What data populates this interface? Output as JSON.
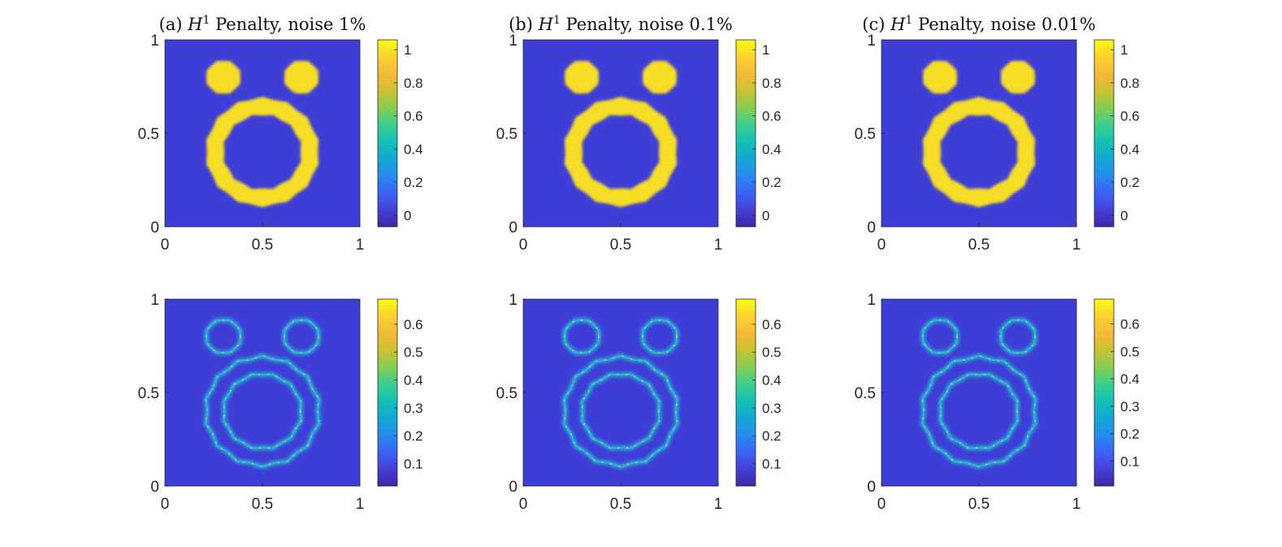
{
  "chart_data": [
    {
      "type": "heatmap",
      "row": 0,
      "col": 0,
      "title_prefix": "(a) ",
      "title_math": "H",
      "title_sup": "1",
      "title_suffix": " Penalty, noise 1%",
      "xlabel": "",
      "ylabel": "",
      "xlim": [
        0,
        1
      ],
      "ylim": [
        0,
        1
      ],
      "x_ticks": [
        "0",
        "0.5",
        "1"
      ],
      "y_ticks": [
        "0",
        "0.5",
        "1"
      ],
      "field": "indicator",
      "shapes": {
        "small_disks": [
          [
            0.3,
            0.8,
            0.09
          ],
          [
            0.7,
            0.8,
            0.09
          ]
        ],
        "annulus": [
          0.5,
          0.4,
          0.2,
          0.29
        ]
      },
      "clim": [
        -0.07,
        1.06
      ],
      "colorbar_ticks": [
        "0",
        "0.2",
        "0.4",
        "0.6",
        "0.8",
        "1"
      ],
      "colorbar_values": [
        0,
        0.2,
        0.4,
        0.6,
        0.8,
        1
      ]
    },
    {
      "type": "heatmap",
      "row": 0,
      "col": 1,
      "title_prefix": "(b) ",
      "title_math": "H",
      "title_sup": "1",
      "title_suffix": " Penalty, noise 0.1%",
      "xlabel": "",
      "ylabel": "",
      "xlim": [
        0,
        1
      ],
      "ylim": [
        0,
        1
      ],
      "x_ticks": [
        "0",
        "0.5",
        "1"
      ],
      "y_ticks": [
        "0",
        "0.5",
        "1"
      ],
      "field": "indicator",
      "shapes": {
        "small_disks": [
          [
            0.3,
            0.8,
            0.09
          ],
          [
            0.7,
            0.8,
            0.09
          ]
        ],
        "annulus": [
          0.5,
          0.4,
          0.2,
          0.29
        ]
      },
      "clim": [
        -0.07,
        1.06
      ],
      "colorbar_ticks": [
        "0",
        "0.2",
        "0.4",
        "0.6",
        "0.8",
        "1"
      ],
      "colorbar_values": [
        0,
        0.2,
        0.4,
        0.6,
        0.8,
        1
      ]
    },
    {
      "type": "heatmap",
      "row": 0,
      "col": 2,
      "title_prefix": "(c) ",
      "title_math": "H",
      "title_sup": "1",
      "title_suffix": " Penalty, noise 0.01%",
      "xlabel": "",
      "ylabel": "",
      "xlim": [
        0,
        1
      ],
      "ylim": [
        0,
        1
      ],
      "x_ticks": [
        "0",
        "0.5",
        "1"
      ],
      "y_ticks": [
        "0",
        "0.5",
        "1"
      ],
      "field": "indicator",
      "shapes": {
        "small_disks": [
          [
            0.3,
            0.8,
            0.09
          ],
          [
            0.7,
            0.8,
            0.09
          ]
        ],
        "annulus": [
          0.5,
          0.4,
          0.2,
          0.29
        ]
      },
      "clim": [
        -0.07,
        1.06
      ],
      "colorbar_ticks": [
        "0",
        "0.2",
        "0.4",
        "0.6",
        "0.8",
        "1"
      ],
      "colorbar_values": [
        0,
        0.2,
        0.4,
        0.6,
        0.8,
        1
      ]
    },
    {
      "type": "heatmap",
      "row": 1,
      "col": 0,
      "xlabel": "",
      "ylabel": "",
      "xlim": [
        0,
        1
      ],
      "ylim": [
        0,
        1
      ],
      "x_ticks": [
        "0",
        "0.5",
        "1"
      ],
      "y_ticks": [
        "0",
        "0.5",
        "1"
      ],
      "field": "edges",
      "shapes": {
        "small_disks": [
          [
            0.3,
            0.8,
            0.09
          ],
          [
            0.7,
            0.8,
            0.09
          ]
        ],
        "annulus": [
          0.5,
          0.4,
          0.2,
          0.29
        ]
      },
      "clim": [
        0.02,
        0.69
      ],
      "colorbar_ticks": [
        "0.1",
        "0.2",
        "0.3",
        "0.4",
        "0.5",
        "0.6"
      ],
      "colorbar_values": [
        0.1,
        0.2,
        0.3,
        0.4,
        0.5,
        0.6
      ]
    },
    {
      "type": "heatmap",
      "row": 1,
      "col": 1,
      "xlabel": "",
      "ylabel": "",
      "xlim": [
        0,
        1
      ],
      "ylim": [
        0,
        1
      ],
      "x_ticks": [
        "0",
        "0.5",
        "1"
      ],
      "y_ticks": [
        "0",
        "0.5",
        "1"
      ],
      "field": "edges",
      "shapes": {
        "small_disks": [
          [
            0.3,
            0.8,
            0.09
          ],
          [
            0.7,
            0.8,
            0.09
          ]
        ],
        "annulus": [
          0.5,
          0.4,
          0.2,
          0.29
        ]
      },
      "clim": [
        0.02,
        0.69
      ],
      "colorbar_ticks": [
        "0.1",
        "0.2",
        "0.3",
        "0.4",
        "0.5",
        "0.6"
      ],
      "colorbar_values": [
        0.1,
        0.2,
        0.3,
        0.4,
        0.5,
        0.6
      ]
    },
    {
      "type": "heatmap",
      "row": 1,
      "col": 2,
      "xlabel": "",
      "ylabel": "",
      "xlim": [
        0,
        1
      ],
      "ylim": [
        0,
        1
      ],
      "x_ticks": [
        "0",
        "0.5",
        "1"
      ],
      "y_ticks": [
        "0",
        "0.5",
        "1"
      ],
      "field": "edges",
      "shapes": {
        "small_disks": [
          [
            0.3,
            0.8,
            0.09
          ],
          [
            0.7,
            0.8,
            0.09
          ]
        ],
        "annulus": [
          0.5,
          0.4,
          0.2,
          0.29
        ]
      },
      "clim": [
        0.01,
        0.69
      ],
      "colorbar_ticks": [
        "0.1",
        "0.2",
        "0.3",
        "0.4",
        "0.5",
        "0.6"
      ],
      "colorbar_values": [
        0.1,
        0.2,
        0.3,
        0.4,
        0.5,
        0.6
      ]
    }
  ],
  "colors": {
    "background": "#3e3ed6",
    "foreground": "#f6dd25",
    "edge_glow": "#27b4d9",
    "edge_peak": "#d8c62a",
    "axis": "#262626"
  },
  "colormap": [
    "#3e26a8",
    "#4540d8",
    "#3a64f7",
    "#268bee",
    "#14a8d2",
    "#14c0b5",
    "#3bcf8e",
    "#86ce53",
    "#c9c231",
    "#f6b93a",
    "#fcd32f",
    "#f9fb15"
  ]
}
